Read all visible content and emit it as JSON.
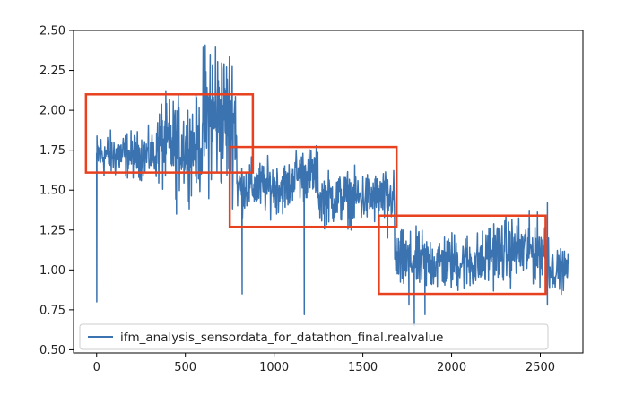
{
  "chart_data": {
    "type": "line",
    "xlim": [
      -130,
      2740
    ],
    "ylim": [
      0.48,
      2.5
    ],
    "x_ticks": [
      0,
      500,
      1000,
      1500,
      2000,
      2500
    ],
    "y_ticks": [
      0.5,
      0.75,
      1.0,
      1.25,
      1.5,
      1.75,
      2.0,
      2.25,
      2.5
    ],
    "x_tick_labels": [
      "0",
      "500",
      "1000",
      "1500",
      "2000",
      "2500"
    ],
    "y_tick_labels": [
      "0.50",
      "0.75",
      "1.00",
      "1.25",
      "1.50",
      "1.75",
      "2.00",
      "2.25",
      "2.50"
    ],
    "legend_placement": "lower-left",
    "grid": false,
    "series": [
      {
        "name": "ifm_analysis_sensordata_for_datathon_final.realvalue",
        "color": "#3b73b0",
        "segments": [
          {
            "x_start": 0,
            "x_end": 340,
            "mean": 1.72,
            "noise": 0.07
          },
          {
            "x_start": 340,
            "x_end": 600,
            "mean": 1.78,
            "noise": 0.14
          },
          {
            "x_start": 600,
            "x_end": 790,
            "mean": 1.95,
            "noise": 0.22
          },
          {
            "x_start": 790,
            "x_end": 1100,
            "mean": 1.52,
            "noise": 0.08
          },
          {
            "x_start": 1100,
            "x_end": 1250,
            "mean": 1.6,
            "noise": 0.08
          },
          {
            "x_start": 1250,
            "x_end": 1680,
            "mean": 1.45,
            "noise": 0.08
          },
          {
            "x_start": 1680,
            "x_end": 2200,
            "mean": 1.05,
            "noise": 0.09
          },
          {
            "x_start": 2200,
            "x_end": 2550,
            "mean": 1.12,
            "noise": 0.1
          },
          {
            "x_start": 2550,
            "x_end": 2660,
            "mean": 1.0,
            "noise": 0.06
          }
        ],
        "spikes": [
          {
            "x": 1,
            "y": 0.8
          },
          {
            "x": 450,
            "y": 1.35
          },
          {
            "x": 640,
            "y": 2.35
          },
          {
            "x": 670,
            "y": 2.4
          },
          {
            "x": 790,
            "y": 1.6
          },
          {
            "x": 820,
            "y": 0.85
          },
          {
            "x": 1170,
            "y": 0.72
          },
          {
            "x": 1640,
            "y": 1.2
          },
          {
            "x": 1760,
            "y": 0.78
          },
          {
            "x": 1790,
            "y": 0.65
          },
          {
            "x": 1850,
            "y": 0.72
          },
          {
            "x": 2540,
            "y": 1.42
          },
          {
            "x": 2540,
            "y": 0.78
          }
        ]
      }
    ],
    "highlight_boxes": [
      {
        "x0": -60,
        "x1": 880,
        "y0": 1.61,
        "y1": 2.1
      },
      {
        "x0": 750,
        "x1": 1690,
        "y0": 1.27,
        "y1": 1.77
      },
      {
        "x0": 1590,
        "x1": 2530,
        "y0": 0.85,
        "y1": 1.34
      }
    ],
    "highlight_color": "#e8411f"
  }
}
